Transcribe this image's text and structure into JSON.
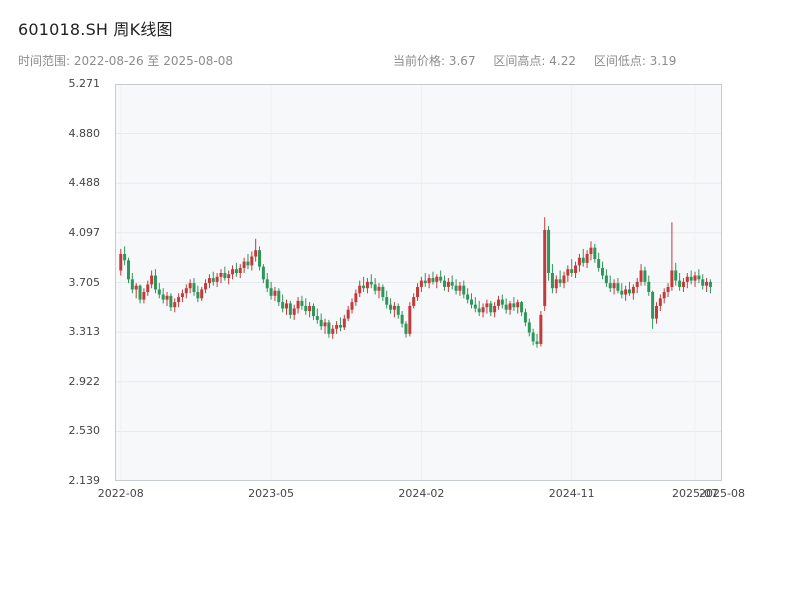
{
  "header": {
    "title": "601018.SH 周K线图",
    "time_range": "时间范围: 2022-08-26 至 2025-08-08",
    "summary_items": [
      "当前价格: 3.67",
      "区间高点: 4.22",
      "区间低点: 3.19"
    ]
  },
  "chart_data": {
    "type": "candlestick",
    "symbol": "601018.SH",
    "period": "weekly",
    "title": "601018.SH 周K线图",
    "date_start": "2022-08-26",
    "date_end": "2025-08-08",
    "current_price": 3.67,
    "range_high": 4.22,
    "range_low": 3.19,
    "ylim": [
      2.139,
      5.271
    ],
    "y_ticks": [
      "5.271",
      "4.880",
      "4.488",
      "4.097",
      "3.705",
      "3.313",
      "2.922",
      "2.530",
      "2.139"
    ],
    "x_ticks": [
      {
        "label": "2022-08",
        "index": 0
      },
      {
        "label": "2023-05",
        "index": 39
      },
      {
        "label": "2024-02",
        "index": 78
      },
      {
        "label": "2024-11",
        "index": 117
      },
      {
        "label": "2025-07",
        "index": 149
      },
      {
        "label": "2025-08",
        "index": 156
      }
    ],
    "up_color": "#c23b3b",
    "down_color": "#2e9658",
    "grid": true,
    "legend": "none",
    "candles_ohlc": [
      [
        3.8,
        3.97,
        3.76,
        3.93
      ],
      [
        3.93,
        3.99,
        3.84,
        3.88
      ],
      [
        3.88,
        3.9,
        3.7,
        3.73
      ],
      [
        3.73,
        3.78,
        3.62,
        3.65
      ],
      [
        3.65,
        3.7,
        3.58,
        3.68
      ],
      [
        3.68,
        3.69,
        3.54,
        3.57
      ],
      [
        3.57,
        3.66,
        3.54,
        3.63
      ],
      [
        3.63,
        3.72,
        3.6,
        3.69
      ],
      [
        3.69,
        3.8,
        3.66,
        3.76
      ],
      [
        3.76,
        3.81,
        3.62,
        3.65
      ],
      [
        3.65,
        3.7,
        3.58,
        3.61
      ],
      [
        3.61,
        3.66,
        3.54,
        3.57
      ],
      [
        3.57,
        3.63,
        3.52,
        3.6
      ],
      [
        3.6,
        3.62,
        3.48,
        3.51
      ],
      [
        3.51,
        3.58,
        3.47,
        3.55
      ],
      [
        3.55,
        3.62,
        3.51,
        3.59
      ],
      [
        3.59,
        3.65,
        3.55,
        3.62
      ],
      [
        3.62,
        3.69,
        3.58,
        3.66
      ],
      [
        3.66,
        3.73,
        3.62,
        3.7
      ],
      [
        3.7,
        3.74,
        3.6,
        3.63
      ],
      [
        3.63,
        3.68,
        3.55,
        3.58
      ],
      [
        3.58,
        3.67,
        3.56,
        3.65
      ],
      [
        3.65,
        3.73,
        3.62,
        3.7
      ],
      [
        3.7,
        3.77,
        3.66,
        3.74
      ],
      [
        3.74,
        3.79,
        3.68,
        3.71
      ],
      [
        3.71,
        3.78,
        3.67,
        3.75
      ],
      [
        3.75,
        3.81,
        3.7,
        3.78
      ],
      [
        3.78,
        3.83,
        3.72,
        3.74
      ],
      [
        3.74,
        3.8,
        3.69,
        3.77
      ],
      [
        3.77,
        3.84,
        3.73,
        3.81
      ],
      [
        3.81,
        3.86,
        3.75,
        3.78
      ],
      [
        3.78,
        3.85,
        3.74,
        3.82
      ],
      [
        3.82,
        3.9,
        3.78,
        3.87
      ],
      [
        3.87,
        3.93,
        3.81,
        3.84
      ],
      [
        3.84,
        3.95,
        3.8,
        3.91
      ],
      [
        3.91,
        4.05,
        3.87,
        3.96
      ],
      [
        3.96,
        3.99,
        3.8,
        3.83
      ],
      [
        3.83,
        3.85,
        3.7,
        3.73
      ],
      [
        3.73,
        3.78,
        3.63,
        3.66
      ],
      [
        3.66,
        3.71,
        3.57,
        3.6
      ],
      [
        3.6,
        3.67,
        3.56,
        3.64
      ],
      [
        3.64,
        3.66,
        3.52,
        3.55
      ],
      [
        3.55,
        3.61,
        3.47,
        3.5
      ],
      [
        3.5,
        3.57,
        3.45,
        3.54
      ],
      [
        3.54,
        3.56,
        3.42,
        3.45
      ],
      [
        3.45,
        3.53,
        3.41,
        3.5
      ],
      [
        3.5,
        3.59,
        3.46,
        3.56
      ],
      [
        3.56,
        3.6,
        3.49,
        3.52
      ],
      [
        3.52,
        3.58,
        3.45,
        3.48
      ],
      [
        3.48,
        3.55,
        3.43,
        3.52
      ],
      [
        3.52,
        3.54,
        3.41,
        3.44
      ],
      [
        3.44,
        3.5,
        3.38,
        3.41
      ],
      [
        3.41,
        3.46,
        3.33,
        3.36
      ],
      [
        3.36,
        3.42,
        3.3,
        3.39
      ],
      [
        3.39,
        3.41,
        3.27,
        3.3
      ],
      [
        3.3,
        3.37,
        3.26,
        3.34
      ],
      [
        3.34,
        3.4,
        3.3,
        3.37
      ],
      [
        3.37,
        3.43,
        3.32,
        3.35
      ],
      [
        3.35,
        3.45,
        3.33,
        3.42
      ],
      [
        3.42,
        3.52,
        3.4,
        3.49
      ],
      [
        3.49,
        3.58,
        3.46,
        3.55
      ],
      [
        3.55,
        3.65,
        3.52,
        3.62
      ],
      [
        3.62,
        3.72,
        3.59,
        3.68
      ],
      [
        3.68,
        3.75,
        3.63,
        3.66
      ],
      [
        3.66,
        3.74,
        3.62,
        3.71
      ],
      [
        3.71,
        3.77,
        3.66,
        3.69
      ],
      [
        3.69,
        3.74,
        3.61,
        3.64
      ],
      [
        3.64,
        3.7,
        3.58,
        3.67
      ],
      [
        3.67,
        3.69,
        3.56,
        3.59
      ],
      [
        3.59,
        3.64,
        3.5,
        3.53
      ],
      [
        3.53,
        3.58,
        3.46,
        3.49
      ],
      [
        3.49,
        3.55,
        3.43,
        3.52
      ],
      [
        3.52,
        3.54,
        3.42,
        3.45
      ],
      [
        3.45,
        3.48,
        3.35,
        3.38
      ],
      [
        3.38,
        3.4,
        3.27,
        3.3
      ],
      [
        3.3,
        3.55,
        3.28,
        3.52
      ],
      [
        3.52,
        3.62,
        3.5,
        3.59
      ],
      [
        3.59,
        3.7,
        3.56,
        3.67
      ],
      [
        3.67,
        3.75,
        3.63,
        3.72
      ],
      [
        3.72,
        3.78,
        3.67,
        3.7
      ],
      [
        3.7,
        3.77,
        3.66,
        3.74
      ],
      [
        3.74,
        3.79,
        3.69,
        3.71
      ],
      [
        3.71,
        3.77,
        3.66,
        3.75
      ],
      [
        3.75,
        3.8,
        3.7,
        3.72
      ],
      [
        3.72,
        3.76,
        3.64,
        3.67
      ],
      [
        3.67,
        3.74,
        3.63,
        3.71
      ],
      [
        3.71,
        3.76,
        3.65,
        3.68
      ],
      [
        3.68,
        3.73,
        3.61,
        3.64
      ],
      [
        3.64,
        3.71,
        3.6,
        3.68
      ],
      [
        3.68,
        3.72,
        3.58,
        3.61
      ],
      [
        3.61,
        3.66,
        3.54,
        3.57
      ],
      [
        3.57,
        3.62,
        3.5,
        3.53
      ],
      [
        3.53,
        3.59,
        3.47,
        3.5
      ],
      [
        3.5,
        3.56,
        3.44,
        3.47
      ],
      [
        3.47,
        3.54,
        3.43,
        3.51
      ],
      [
        3.51,
        3.57,
        3.46,
        3.54
      ],
      [
        3.54,
        3.56,
        3.44,
        3.47
      ],
      [
        3.47,
        3.55,
        3.43,
        3.52
      ],
      [
        3.52,
        3.6,
        3.49,
        3.57
      ],
      [
        3.57,
        3.61,
        3.5,
        3.53
      ],
      [
        3.53,
        3.58,
        3.46,
        3.49
      ],
      [
        3.49,
        3.56,
        3.45,
        3.54
      ],
      [
        3.54,
        3.59,
        3.48,
        3.51
      ],
      [
        3.51,
        3.57,
        3.46,
        3.55
      ],
      [
        3.55,
        3.56,
        3.44,
        3.47
      ],
      [
        3.47,
        3.5,
        3.36,
        3.39
      ],
      [
        3.39,
        3.42,
        3.28,
        3.31
      ],
      [
        3.31,
        3.34,
        3.21,
        3.24
      ],
      [
        3.24,
        3.3,
        3.19,
        3.22
      ],
      [
        3.22,
        3.48,
        3.2,
        3.45
      ],
      [
        3.52,
        4.22,
        3.48,
        4.12
      ],
      [
        4.12,
        4.15,
        3.72,
        3.78
      ],
      [
        3.78,
        3.85,
        3.62,
        3.66
      ],
      [
        3.66,
        3.76,
        3.62,
        3.73
      ],
      [
        3.73,
        3.8,
        3.67,
        3.7
      ],
      [
        3.7,
        3.79,
        3.66,
        3.76
      ],
      [
        3.76,
        3.84,
        3.71,
        3.81
      ],
      [
        3.81,
        3.89,
        3.75,
        3.78
      ],
      [
        3.78,
        3.87,
        3.74,
        3.84
      ],
      [
        3.84,
        3.93,
        3.79,
        3.9
      ],
      [
        3.9,
        3.97,
        3.83,
        3.86
      ],
      [
        3.86,
        3.96,
        3.82,
        3.93
      ],
      [
        3.93,
        4.03,
        3.88,
        3.98
      ],
      [
        3.98,
        4.01,
        3.86,
        3.89
      ],
      [
        3.89,
        3.94,
        3.79,
        3.82
      ],
      [
        3.82,
        3.87,
        3.73,
        3.76
      ],
      [
        3.76,
        3.81,
        3.67,
        3.7
      ],
      [
        3.7,
        3.76,
        3.63,
        3.66
      ],
      [
        3.66,
        3.73,
        3.61,
        3.7
      ],
      [
        3.7,
        3.74,
        3.62,
        3.64
      ],
      [
        3.64,
        3.7,
        3.58,
        3.61
      ],
      [
        3.61,
        3.68,
        3.56,
        3.65
      ],
      [
        3.65,
        3.71,
        3.6,
        3.62
      ],
      [
        3.62,
        3.69,
        3.57,
        3.67
      ],
      [
        3.67,
        3.74,
        3.62,
        3.71
      ],
      [
        3.71,
        3.85,
        3.68,
        3.8
      ],
      [
        3.8,
        3.83,
        3.68,
        3.71
      ],
      [
        3.71,
        3.76,
        3.6,
        3.63
      ],
      [
        3.63,
        3.64,
        3.34,
        3.42
      ],
      [
        3.42,
        3.55,
        3.38,
        3.52
      ],
      [
        3.52,
        3.61,
        3.48,
        3.58
      ],
      [
        3.58,
        3.66,
        3.54,
        3.63
      ],
      [
        3.63,
        3.7,
        3.59,
        3.67
      ],
      [
        3.67,
        4.18,
        3.64,
        3.8
      ],
      [
        3.8,
        3.86,
        3.68,
        3.72
      ],
      [
        3.72,
        3.78,
        3.64,
        3.67
      ],
      [
        3.67,
        3.74,
        3.63,
        3.71
      ],
      [
        3.71,
        3.78,
        3.66,
        3.75
      ],
      [
        3.75,
        3.8,
        3.69,
        3.72
      ],
      [
        3.72,
        3.79,
        3.67,
        3.76
      ],
      [
        3.76,
        3.81,
        3.7,
        3.73
      ],
      [
        3.73,
        3.77,
        3.65,
        3.68
      ],
      [
        3.68,
        3.74,
        3.63,
        3.71
      ],
      [
        3.71,
        3.73,
        3.62,
        3.67
      ]
    ]
  }
}
